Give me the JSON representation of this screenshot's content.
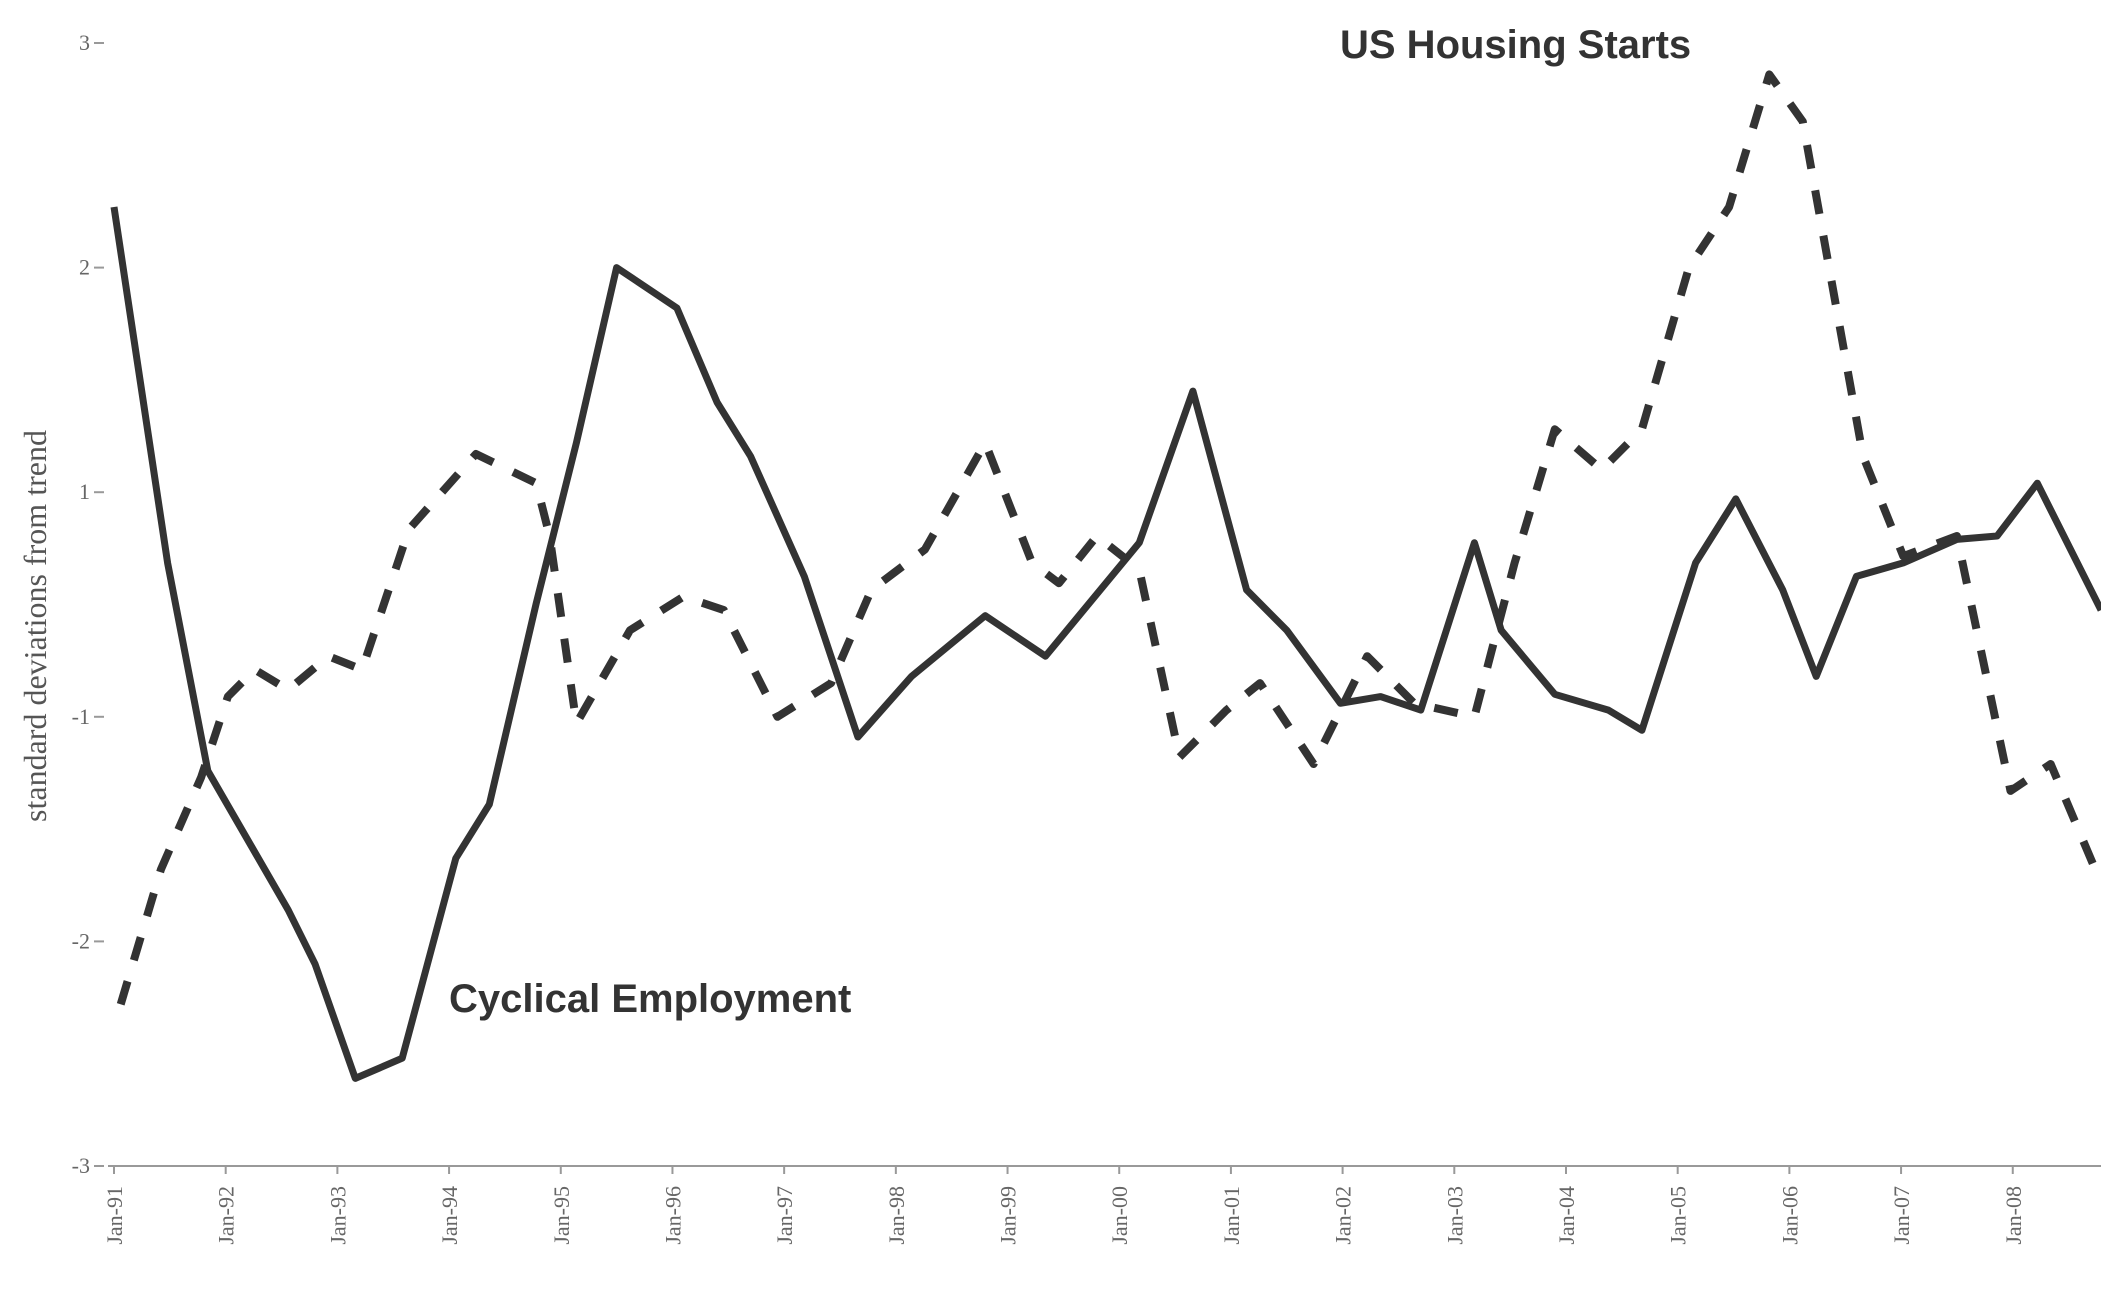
{
  "chart_data": {
    "type": "line",
    "y_label": "standard deviations from trend",
    "xlim": [
      1991,
      2008.79
    ],
    "xticks": [
      {
        "value": 1991,
        "label": "Jan-91"
      },
      {
        "value": 1992,
        "label": "Jan-92"
      },
      {
        "value": 1993,
        "label": "Jan-93"
      },
      {
        "value": 1994,
        "label": "Jan-94"
      },
      {
        "value": 1995,
        "label": "Jan-95"
      },
      {
        "value": 1996,
        "label": "Jan-96"
      },
      {
        "value": 1997,
        "label": "Jan-97"
      },
      {
        "value": 1998,
        "label": "Jan-98"
      },
      {
        "value": 1999,
        "label": "Jan-99"
      },
      {
        "value": 2000,
        "label": "Jan-00"
      },
      {
        "value": 2001,
        "label": "Jan-01"
      },
      {
        "value": 2002,
        "label": "Jan-02"
      },
      {
        "value": 2003,
        "label": "Jan-03"
      },
      {
        "value": 2004,
        "label": "Jan-04"
      },
      {
        "value": 2005,
        "label": "Jan-05"
      },
      {
        "value": 2006,
        "label": "Jan-06"
      },
      {
        "value": 2007,
        "label": "Jan-07"
      },
      {
        "value": 2008,
        "label": "Jan-08"
      }
    ],
    "ylim": [
      -3,
      3
    ],
    "yticks": [
      3,
      2,
      1,
      -1,
      -2,
      -3
    ],
    "series": [
      {
        "name": "Cyclical Employment",
        "color": "#333333",
        "dash": false,
        "x": [
          1991.0,
          1991.48,
          1991.84,
          1992.56,
          1992.8,
          1993.16,
          1993.58,
          1994.06,
          1994.36,
          1994.78,
          1995.14,
          1995.5,
          1996.04,
          1996.4,
          1996.7,
          1997.18,
          1997.66,
          1998.14,
          1998.8,
          1999.34,
          2000.18,
          2000.66,
          2001.14,
          2001.5,
          2001.98,
          2002.34,
          2002.7,
          2003.18,
          2003.42,
          2003.9,
          2004.38,
          2004.68,
          2005.16,
          2005.52,
          2005.94,
          2006.24,
          2006.6,
          2007.02,
          2007.5,
          2007.86,
          2008.22,
          2008.79
        ],
        "values": [
          2.27,
          0.37,
          -1.24,
          -1.86,
          -2.1,
          -2.61,
          -2.52,
          -1.63,
          -1.39,
          0.01,
          1.22,
          2.0,
          1.82,
          1.4,
          1.16,
          0.25,
          -1.09,
          -0.64,
          -0.1,
          -0.46,
          0.55,
          1.45,
          0.13,
          -0.23,
          -0.88,
          -0.82,
          -0.94,
          0.55,
          -0.23,
          -0.8,
          -0.94,
          -1.06,
          0.37,
          0.94,
          0.13,
          -0.64,
          0.25,
          0.37,
          0.58,
          0.61,
          1.04,
          -0.05
        ]
      },
      {
        "name": "US Housing Starts",
        "color": "#333333",
        "dash": true,
        "x": [
          1991.06,
          1991.42,
          1991.78,
          1992.02,
          1992.26,
          1992.56,
          1992.92,
          1993.22,
          1993.64,
          1994.24,
          1994.78,
          1994.9,
          1995.14,
          1995.62,
          1996.1,
          1996.46,
          1996.94,
          1997.42,
          1997.78,
          1998.26,
          1998.8,
          1999.22,
          1999.46,
          1999.8,
          2000.18,
          2000.54,
          2000.96,
          2001.26,
          2001.74,
          2002.22,
          2002.64,
          2003.18,
          2003.54,
          2003.9,
          2004.32,
          2004.68,
          2005.1,
          2005.46,
          2005.82,
          2006.12,
          2006.66,
          2007.02,
          2007.5,
          2007.98,
          2008.34,
          2008.79
        ],
        "values": [
          -2.28,
          -1.68,
          -1.27,
          -0.82,
          -0.58,
          -0.76,
          -0.46,
          -0.58,
          0.67,
          1.17,
          1.04,
          0.61,
          -1.03,
          -0.23,
          0.07,
          -0.05,
          -1.0,
          -0.7,
          0.13,
          0.49,
          1.22,
          0.37,
          0.19,
          0.61,
          0.31,
          -1.18,
          -0.94,
          -0.7,
          -1.21,
          -0.46,
          -0.88,
          -1.0,
          0.37,
          1.28,
          1.1,
          1.28,
          2.0,
          2.27,
          2.86,
          2.65,
          1.16,
          0.43,
          0.61,
          -1.33,
          -1.21,
          -1.74
        ]
      }
    ]
  }
}
